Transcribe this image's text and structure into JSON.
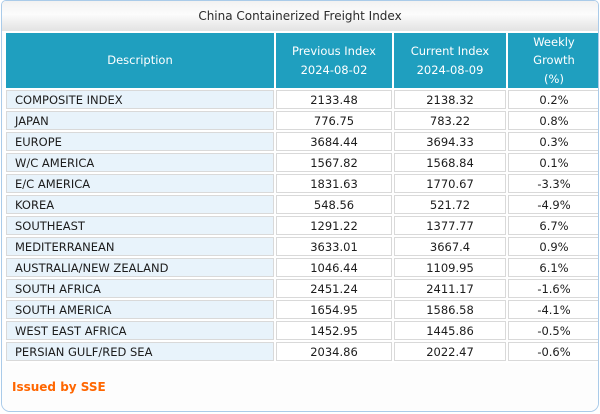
{
  "title": "China Containerized Freight Index",
  "table": {
    "columns": [
      {
        "label": "Description",
        "sub": ""
      },
      {
        "label": "Previous Index",
        "sub": "2024-08-02"
      },
      {
        "label": "Current Index",
        "sub": "2024-08-09"
      },
      {
        "label": "Weekly Growth",
        "sub": "(%)"
      }
    ],
    "rows": [
      {
        "description": "COMPOSITE INDEX",
        "previous": "2133.48",
        "current": "2138.32",
        "growth": "0.2%"
      },
      {
        "description": "JAPAN",
        "previous": "776.75",
        "current": "783.22",
        "growth": "0.8%"
      },
      {
        "description": "EUROPE",
        "previous": "3684.44",
        "current": "3694.33",
        "growth": "0.3%"
      },
      {
        "description": "W/C AMERICA",
        "previous": "1567.82",
        "current": "1568.84",
        "growth": "0.1%"
      },
      {
        "description": "E/C AMERICA",
        "previous": "1831.63",
        "current": "1770.67",
        "growth": "-3.3%"
      },
      {
        "description": "KOREA",
        "previous": "548.56",
        "current": "521.72",
        "growth": "-4.9%"
      },
      {
        "description": "SOUTHEAST",
        "previous": "1291.22",
        "current": "1377.77",
        "growth": "6.7%"
      },
      {
        "description": "MEDITERRANEAN",
        "previous": "3633.01",
        "current": "3667.4",
        "growth": "0.9%"
      },
      {
        "description": "AUSTRALIA/NEW ZEALAND",
        "previous": "1046.44",
        "current": "1109.95",
        "growth": "6.1%"
      },
      {
        "description": "SOUTH AFRICA",
        "previous": "2451.24",
        "current": "2411.17",
        "growth": "-1.6%"
      },
      {
        "description": "SOUTH AMERICA",
        "previous": "1654.95",
        "current": "1586.58",
        "growth": "-4.1%"
      },
      {
        "description": "WEST EAST AFRICA",
        "previous": "1452.95",
        "current": "1445.86",
        "growth": "-0.5%"
      },
      {
        "description": "PERSIAN GULF/RED SEA",
        "previous": "2034.86",
        "current": "2022.47",
        "growth": "-0.6%"
      }
    ]
  },
  "footer": {
    "issued_by": "Issued by SSE"
  },
  "colors": {
    "header_bg": "#1f9fbf",
    "description_bg": "#e8f3fb",
    "grid_line": "#d9d9d9",
    "panel_border": "#aacbe9",
    "issued_by_text": "#ff6600"
  }
}
